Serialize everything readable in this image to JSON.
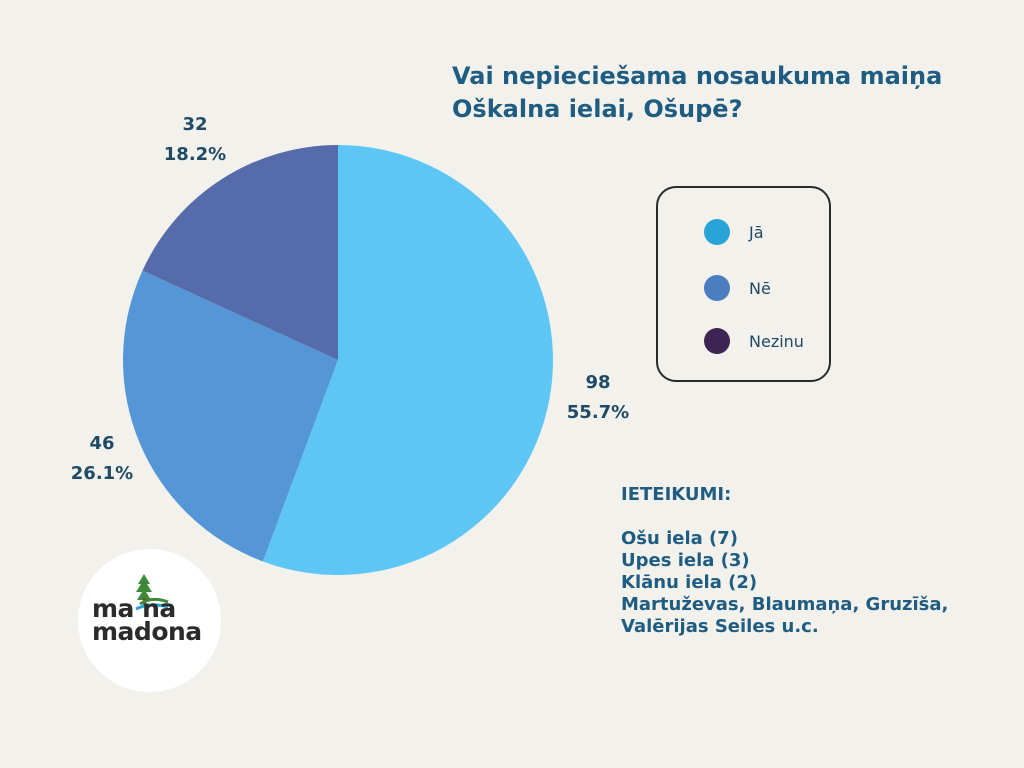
{
  "chart_data": {
    "type": "pie",
    "title": "Vai nepieciešama nosaukuma maiņa Oškalna ielai, Ošupē?",
    "title_lines": [
      "Vai nepieciešama nosaukuma maiņa",
      "Oškalna ielai, Ošupē?"
    ],
    "slices": [
      {
        "label": "Jā",
        "value": 98,
        "percent_label": "55.7%",
        "color": "#5ec6f5",
        "legend_color": "#2aa3d9"
      },
      {
        "label": "Nē",
        "value": 46,
        "percent_label": "26.1%",
        "color": "#5597d6",
        "legend_color": "#4a7ec0"
      },
      {
        "label": "Nezinu",
        "value": 32,
        "percent_label": "18.2%",
        "color": "#566ba9",
        "legend_color": "#3d2453"
      }
    ],
    "start_angle_deg": 0,
    "direction": "clockwise",
    "legend_position": "right"
  },
  "suggestions": {
    "heading": "IETEIKUMI:",
    "items": [
      "Ošu iela (7)",
      "Upes iela (3)",
      "Klānu iela (2)",
      "Martuževas, Blaumaņa, Gruzīša,",
      "Valērijas Seiles u.c."
    ]
  },
  "logo": {
    "line1": "ma na",
    "line2": "madona",
    "icon": "tree-river-logo-icon"
  }
}
